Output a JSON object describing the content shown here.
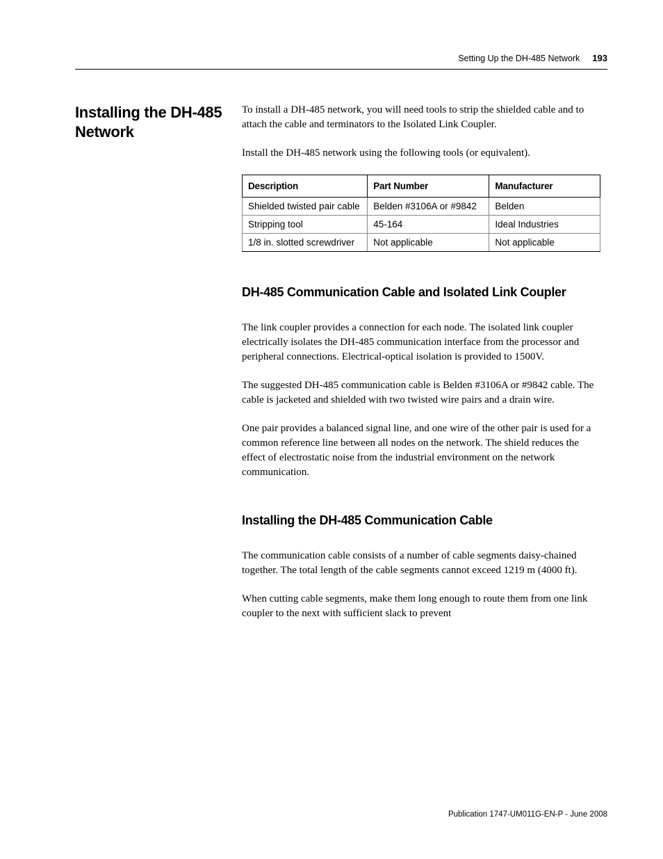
{
  "header": {
    "title": "Setting Up the DH-485 Network",
    "page_number": "193"
  },
  "section": {
    "heading": "Installing the DH-485 Network",
    "intro_para": "To install a DH-485 network, you will need tools to strip the shielded cable and to attach the cable and terminators to the Isolated Link Coupler.",
    "tools_para": "Install the DH-485 network using the following tools (or equivalent)."
  },
  "tools_table": {
    "headers": [
      "Description",
      "Part Number",
      "Manufacturer"
    ],
    "rows": [
      [
        "Shielded twisted pair cable",
        "Belden #3106A or #9842",
        "Belden"
      ],
      [
        "Stripping tool",
        "45-164",
        "Ideal Industries"
      ],
      [
        "1/8 in. slotted screwdriver",
        "Not applicable",
        "Not applicable"
      ]
    ],
    "col_widths": [
      "35%",
      "34%",
      "31%"
    ]
  },
  "subsections": [
    {
      "heading": "DH-485 Communication Cable and Isolated Link Coupler",
      "paragraphs": [
        "The link coupler provides a connection for each node. The isolated link coupler electrically isolates the DH-485 communication interface from the processor and peripheral connections. Electrical-optical isolation is provided to 1500V.",
        "The suggested DH-485 communication cable is Belden #3106A or #9842 cable. The cable is jacketed and shielded with two twisted wire pairs and a drain wire.",
        "One pair provides a balanced signal line, and one wire of the other pair is used for a common reference line between all nodes on the network. The shield reduces the effect of electrostatic noise from the industrial environment on the network communication."
      ]
    },
    {
      "heading": "Installing the DH-485 Communication Cable",
      "paragraphs": [
        "The communication cable consists of a number of cable segments daisy-chained together. The total length of the cable segments cannot exceed 1219 m (4000 ft).",
        "When cutting cable segments, make them long enough to route them from one link coupler to the next with sufficient slack to prevent"
      ]
    }
  ],
  "footer": "Publication 1747-UM011G-EN-P - June 2008"
}
